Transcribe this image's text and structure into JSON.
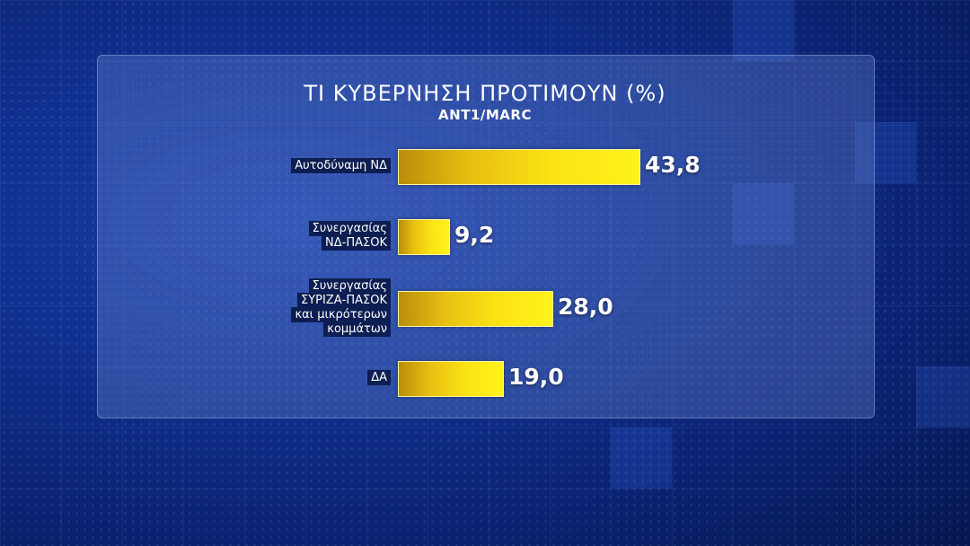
{
  "chart_data": {
    "type": "bar",
    "orientation": "horizontal",
    "title": "ΤΙ ΚΥΒΕΡΝΗΣΗ ΠΡΟΤΙΜΟΥΝ (%)",
    "subtitle": "ANT1/MARC",
    "categories": [
      "Αυτοδύναμη ΝΔ",
      "Συνεργασίας\nΝΔ-ΠΑΣΟΚ",
      "Συνεργασίας\nΣΥΡΙΖΑ-ΠΑΣΟΚ\nκαι μικρότερων\nκομμάτων",
      "ΔΑ"
    ],
    "values": [
      43.8,
      9.2,
      28.0,
      19.0
    ],
    "value_labels": [
      "43,8",
      "9,2",
      "28,0",
      "19,0"
    ],
    "xlim": [
      0,
      43.8
    ],
    "bar_color": "#f5d414"
  }
}
